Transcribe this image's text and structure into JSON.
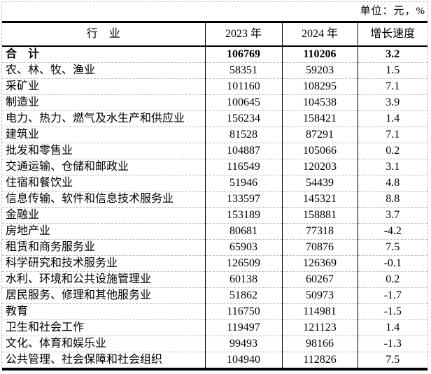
{
  "unit_note": "单位：元，%",
  "table": {
    "columns": {
      "industry": "行　业",
      "y2023": "2023 年",
      "y2024": "2024 年",
      "growth": "增长速度"
    },
    "total": {
      "industry": "合　计",
      "y2023": "106769",
      "y2024": "110206",
      "growth": "3.2"
    },
    "rows": [
      {
        "industry": "农、林、牧、渔业",
        "y2023": "58351",
        "y2024": "59203",
        "growth": "1.5"
      },
      {
        "industry": "采矿业",
        "y2023": "101160",
        "y2024": "108295",
        "growth": "7.1"
      },
      {
        "industry": "制造业",
        "y2023": "100645",
        "y2024": "104538",
        "growth": "3.9"
      },
      {
        "industry": "电力、热力、燃气及水生产和供应业",
        "y2023": "156234",
        "y2024": "158421",
        "growth": "1.4"
      },
      {
        "industry": "建筑业",
        "y2023": "81528",
        "y2024": "87291",
        "growth": "7.1"
      },
      {
        "industry": "批发和零售业",
        "y2023": "104887",
        "y2024": "105066",
        "growth": "0.2"
      },
      {
        "industry": "交通运输、仓储和邮政业",
        "y2023": "116549",
        "y2024": "120203",
        "growth": "3.1"
      },
      {
        "industry": "住宿和餐饮业",
        "y2023": "51946",
        "y2024": "54439",
        "growth": "4.8"
      },
      {
        "industry": "信息传输、软件和信息技术服务业",
        "y2023": "133597",
        "y2024": "145321",
        "growth": "8.8"
      },
      {
        "industry": "金融业",
        "y2023": "153189",
        "y2024": "158881",
        "growth": "3.7"
      },
      {
        "industry": "房地产业",
        "y2023": "80681",
        "y2024": "77318",
        "growth": "-4.2"
      },
      {
        "industry": "租赁和商务服务业",
        "y2023": "65903",
        "y2024": "70876",
        "growth": "7.5"
      },
      {
        "industry": "科学研究和技术服务业",
        "y2023": "126509",
        "y2024": "126369",
        "growth": "-0.1"
      },
      {
        "industry": "水利、环境和公共设施管理业",
        "y2023": "60138",
        "y2024": "60267",
        "growth": "0.2"
      },
      {
        "industry": "居民服务、修理和其他服务业",
        "y2023": "51862",
        "y2024": "50973",
        "growth": "-1.7"
      },
      {
        "industry": "教育",
        "y2023": "116750",
        "y2024": "114981",
        "growth": "-1.5"
      },
      {
        "industry": "卫生和社会工作",
        "y2023": "119497",
        "y2024": "121123",
        "growth": "1.4"
      },
      {
        "industry": "文化、体育和娱乐业",
        "y2023": "99493",
        "y2024": "98166",
        "growth": "-1.3"
      },
      {
        "industry": "公共管理、社会保障和社会组织",
        "y2023": "104940",
        "y2024": "112826",
        "growth": "7.5"
      }
    ]
  },
  "colors": {
    "text": "#000000",
    "solid_grid": "#000000",
    "dashed_grid": "#bdbdbd",
    "background": "#ffffff"
  }
}
